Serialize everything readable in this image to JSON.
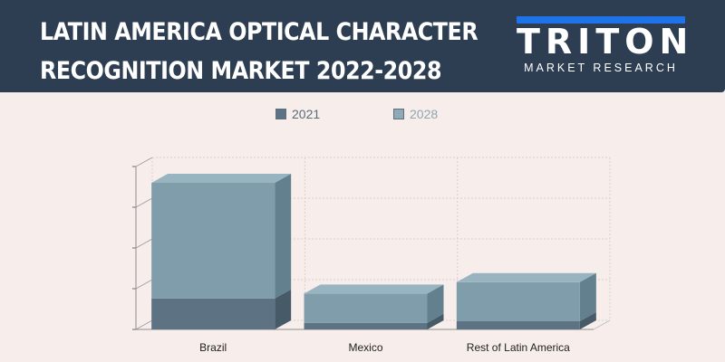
{
  "header": {
    "title_line1": "LATIN AMERICA OPTICAL CHARACTER",
    "title_line2": "RECOGNITION MARKET 2022-2028",
    "logo_word": "TRITON",
    "logo_sub": "MARKET RESEARCH"
  },
  "colors": {
    "header_bg": "#2d3e52",
    "logo_accent": "#1e73e8",
    "series_2021": "#5d7283",
    "series_2028": "#7f9dab"
  },
  "chart_data": {
    "type": "bar",
    "stacked": true,
    "three_d": true,
    "categories": [
      "Brazil",
      "Mexico",
      "Rest of Latin America"
    ],
    "series": [
      {
        "name": "2021",
        "values": [
          38,
          8,
          10
        ]
      },
      {
        "name": "2028",
        "values": [
          142,
          36,
          48
        ]
      }
    ],
    "ylim": [
      0,
      200
    ],
    "y_tick_labels_shown": false,
    "grid": true,
    "legend": "top-center"
  }
}
